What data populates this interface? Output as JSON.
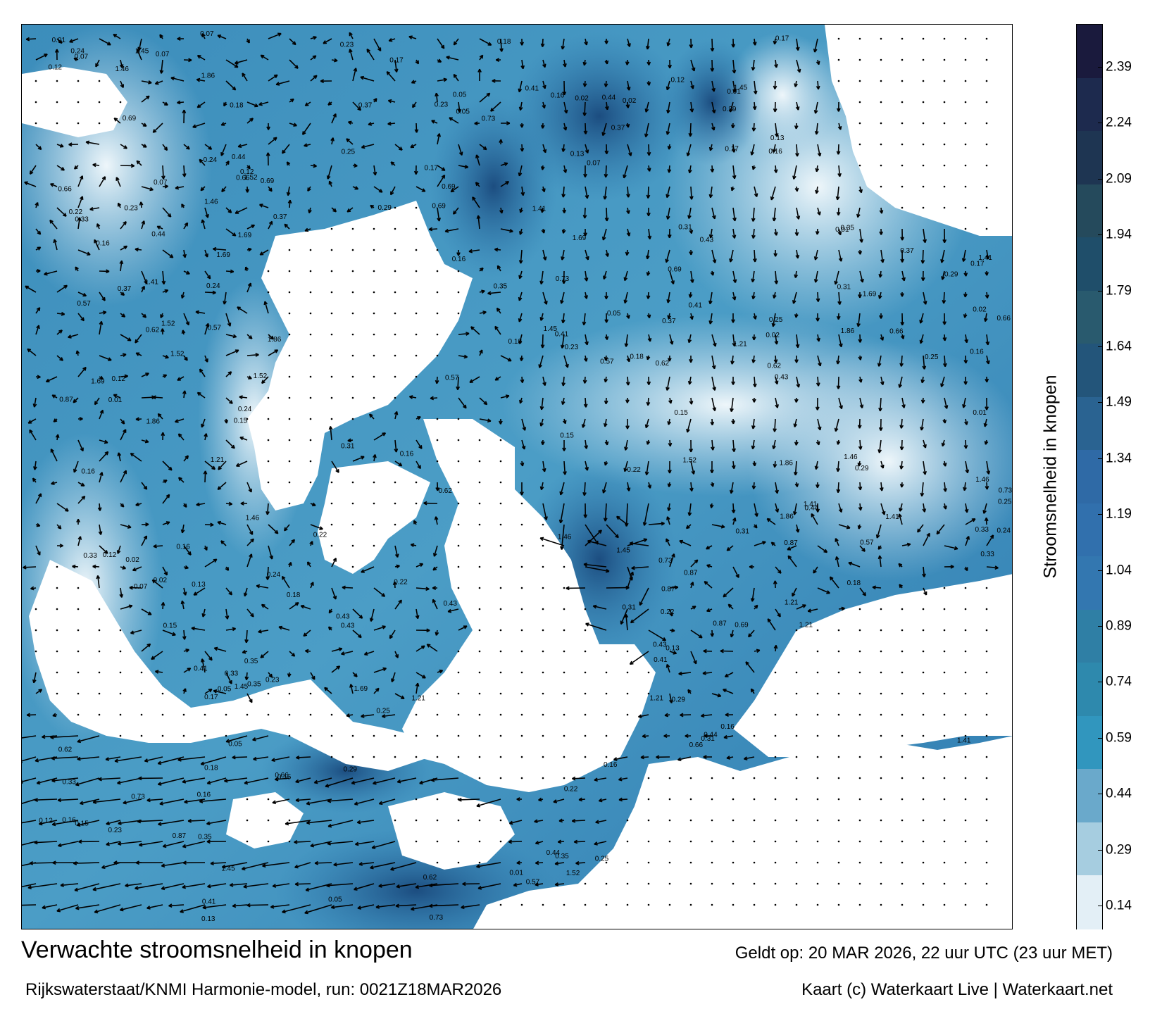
{
  "title": "Verwachte stroomsnelheid in knopen",
  "subtitle": "Rijkswaterstaat/KNMI Harmonie-model, run: 0021Z18MAR2026",
  "valid_time": "Geldt op: 20 MAR 2026, 22 uur UTC (23 uur MET)",
  "credit": "Kaart (c) Waterkaart Live | Waterkaart.net",
  "legend": {
    "title": "Stroomsnelheid in knopen",
    "ticks": [
      "2.39",
      "2.24",
      "2.09",
      "1.94",
      "1.79",
      "1.64",
      "1.49",
      "1.34",
      "1.19",
      "1.04",
      "0.89",
      "0.74",
      "0.59",
      "0.44",
      "0.29",
      "0.14"
    ],
    "colors": [
      "#1a1a3d",
      "#1d2a4e",
      "#1e3552",
      "#254a5c",
      "#1f4e6a",
      "#295a6e",
      "#23557a",
      "#2a6391",
      "#2f6aa6",
      "#3170ad",
      "#3377b0",
      "#2f7fa5",
      "#2e89ad",
      "#3196be",
      "#6aa9cb",
      "#a6cde0",
      "#e3eff6"
    ]
  },
  "map": {
    "land_color": "#ffffff",
    "water_light": "#d2e6f1",
    "water_mid": "#3f95c0",
    "water_dark": "#1f5c94",
    "arrow_color": "#000000",
    "sample_labels": [
      {
        "v": "0.44"
      },
      {
        "v": "0.37"
      },
      {
        "v": "0.43"
      },
      {
        "v": "0.62"
      },
      {
        "v": "0.16"
      },
      {
        "v": "0.07"
      },
      {
        "v": "0.12"
      },
      {
        "v": "0.13"
      },
      {
        "v": "0.25"
      },
      {
        "v": "0.16"
      },
      {
        "v": "0.15"
      },
      {
        "v": "0.24"
      },
      {
        "v": "0.01"
      },
      {
        "v": "0.02"
      },
      {
        "v": "0.05"
      },
      {
        "v": "0.29"
      },
      {
        "v": "0.31"
      },
      {
        "v": "0.35"
      },
      {
        "v": "1.21"
      },
      {
        "v": "1.86"
      },
      {
        "v": "1.45"
      },
      {
        "v": "0.66"
      },
      {
        "v": "0.73"
      },
      {
        "v": "0.57"
      },
      {
        "v": "1.41"
      },
      {
        "v": "1.46"
      },
      {
        "v": "1.52"
      },
      {
        "v": "0.69"
      },
      {
        "v": "0.87"
      },
      {
        "v": "1.69"
      },
      {
        "v": "0.23"
      },
      {
        "v": "0.18"
      },
      {
        "v": "0.33"
      },
      {
        "v": "0.41"
      },
      {
        "v": "0.17"
      },
      {
        "v": "0.22"
      }
    ]
  }
}
